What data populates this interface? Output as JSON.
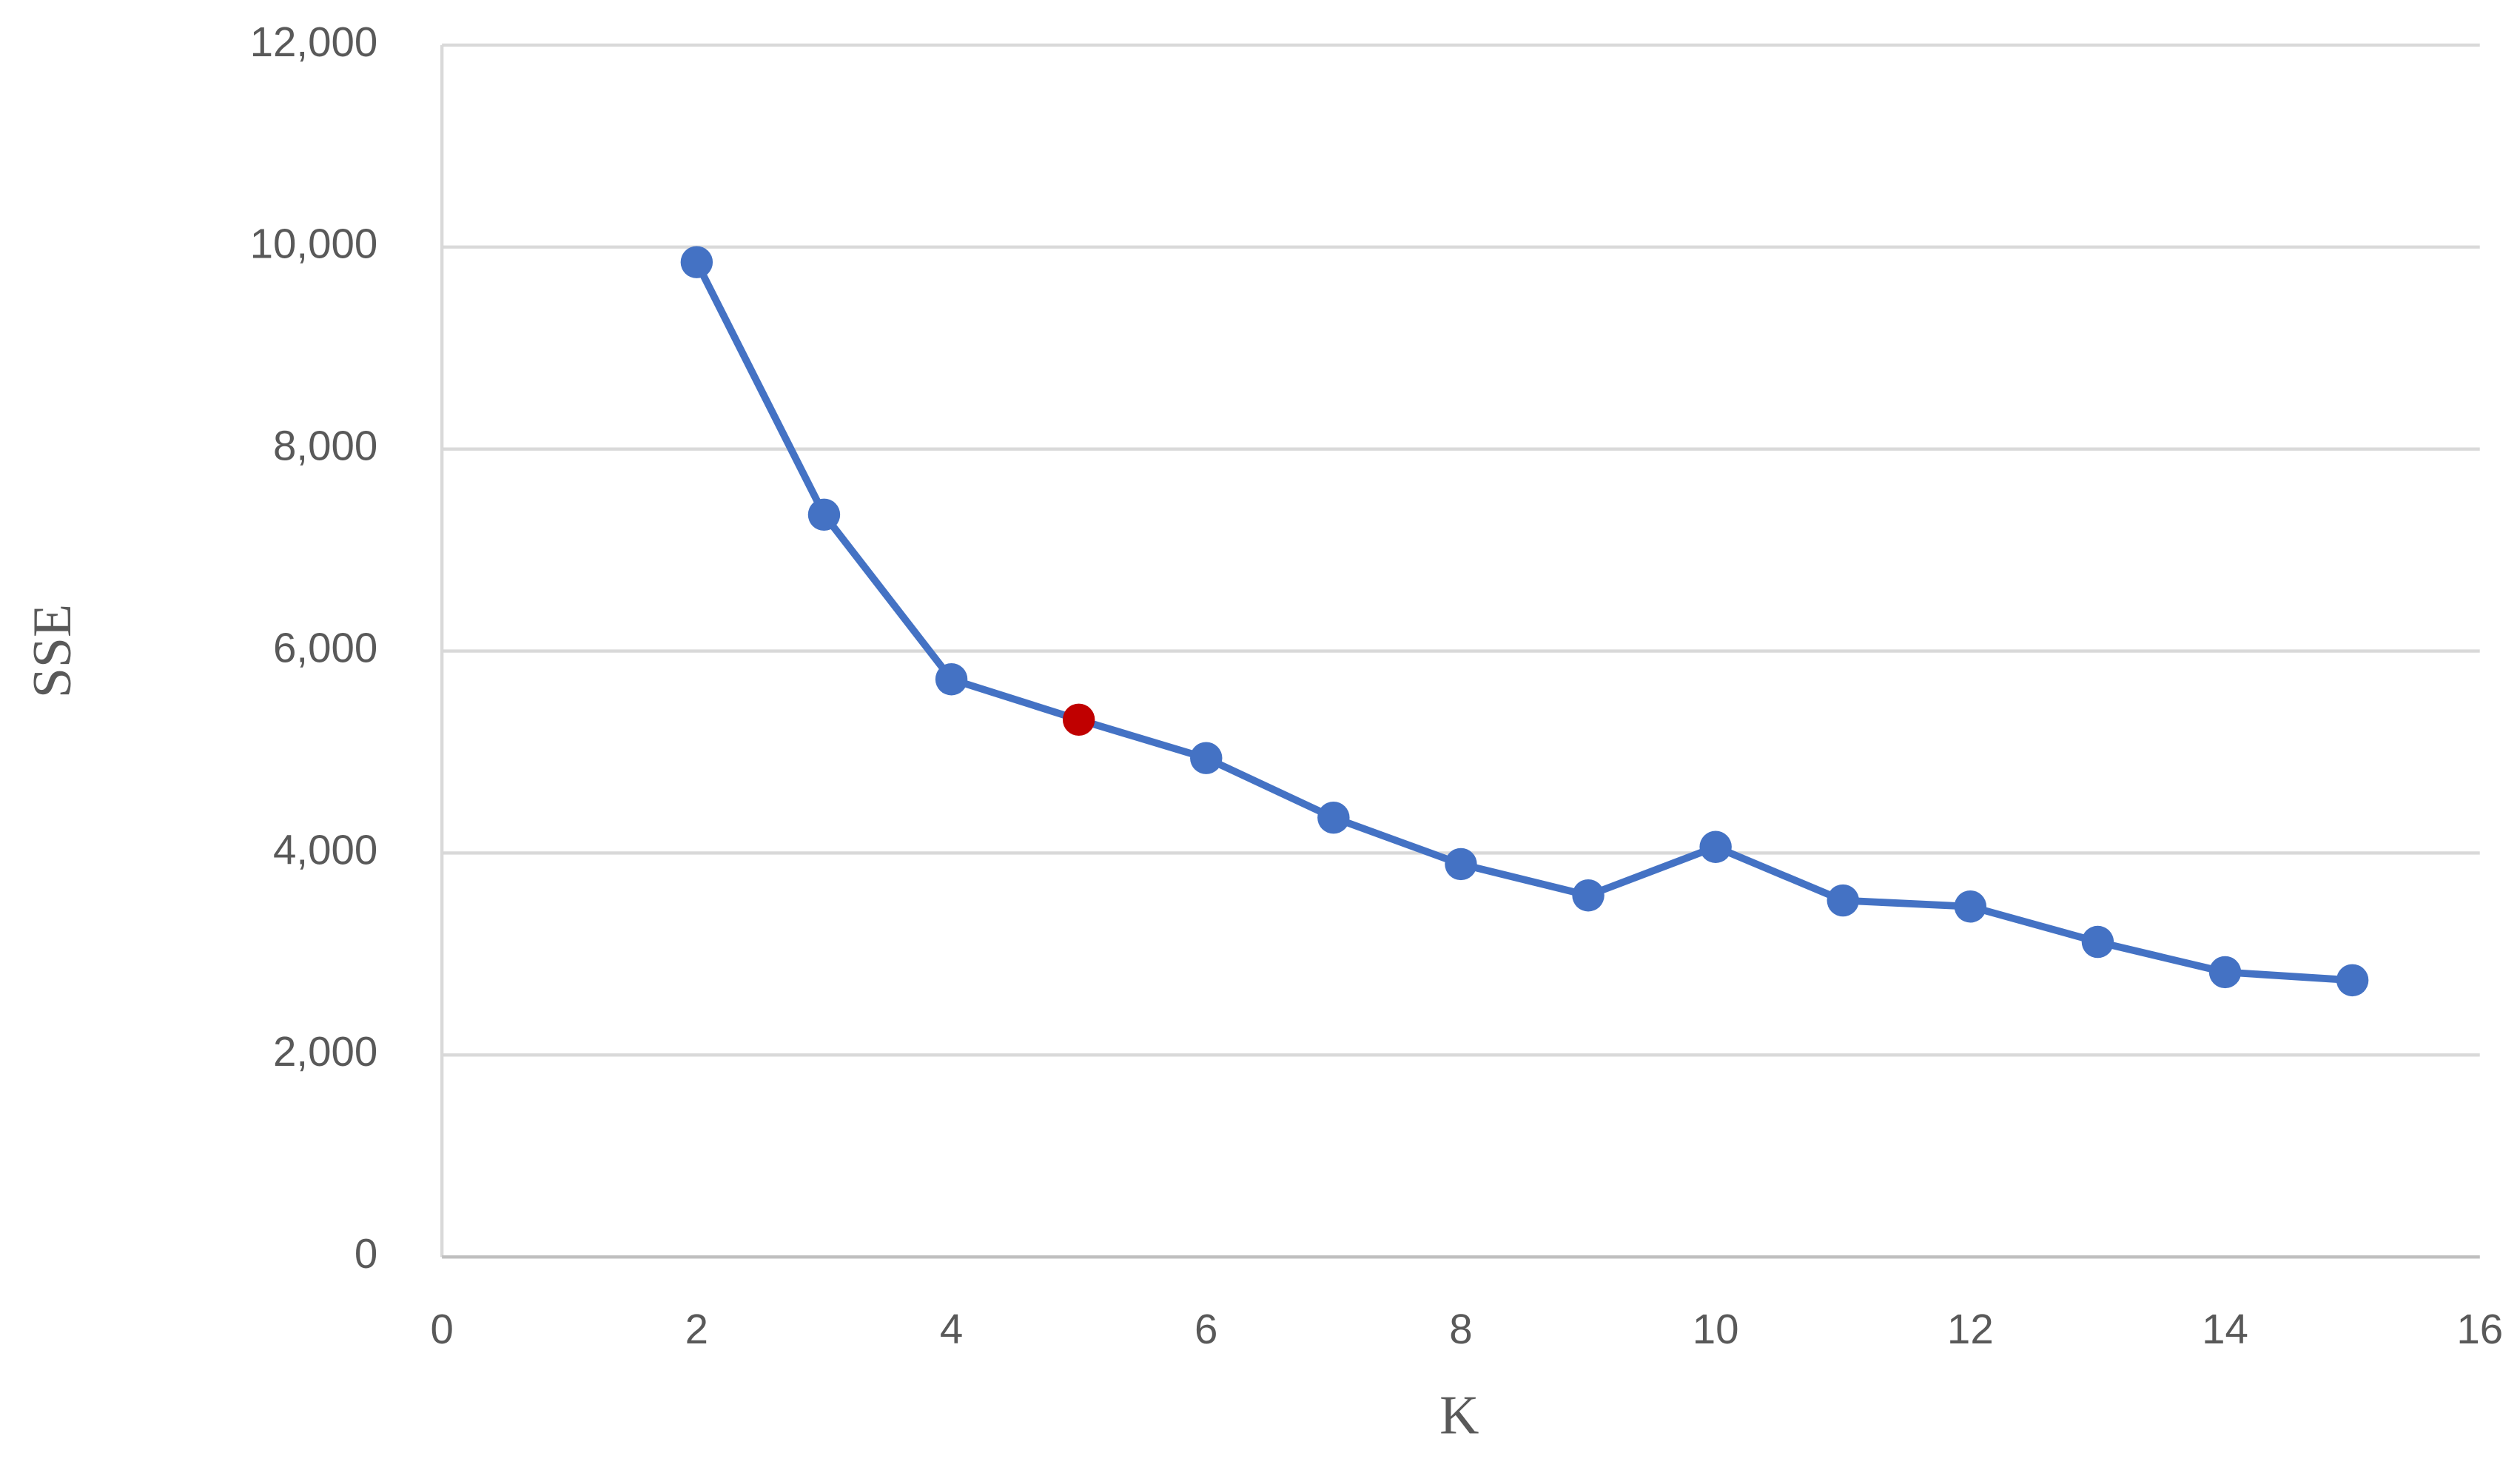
{
  "chart_data": {
    "type": "line",
    "x_label": "K",
    "y_label": "SSE",
    "x": [
      2,
      3,
      4,
      5,
      6,
      7,
      8,
      9,
      10,
      11,
      12,
      13,
      14,
      15
    ],
    "series": [
      {
        "name": "SSE",
        "color": "#4472c4",
        "values": [
          9850,
          7350,
          5720,
          5320,
          4940,
          4350,
          3890,
          3580,
          4060,
          3530,
          3470,
          3120,
          2820,
          2740
        ],
        "marker_colors": [
          "#4472c4",
          "#4472c4",
          "#4472c4",
          "#c00000",
          "#4472c4",
          "#4472c4",
          "#4472c4",
          "#4472c4",
          "#4472c4",
          "#4472c4",
          "#4472c4",
          "#4472c4",
          "#4472c4",
          "#4472c4"
        ]
      }
    ],
    "xlim": [
      0,
      16
    ],
    "xticks": [
      0,
      2,
      4,
      6,
      8,
      10,
      12,
      14,
      16
    ],
    "ylim": [
      0,
      12000
    ],
    "yticks": [
      0,
      {
        "value": 2000,
        "label": "2,000"
      },
      {
        "value": 4000,
        "label": "4,000"
      },
      {
        "value": 6000,
        "label": "6,000"
      },
      {
        "value": 8000,
        "label": "8,000"
      },
      {
        "value": 10000,
        "label": "10,000"
      },
      {
        "value": 12000,
        "label": "12,000"
      }
    ],
    "grid": true
  }
}
